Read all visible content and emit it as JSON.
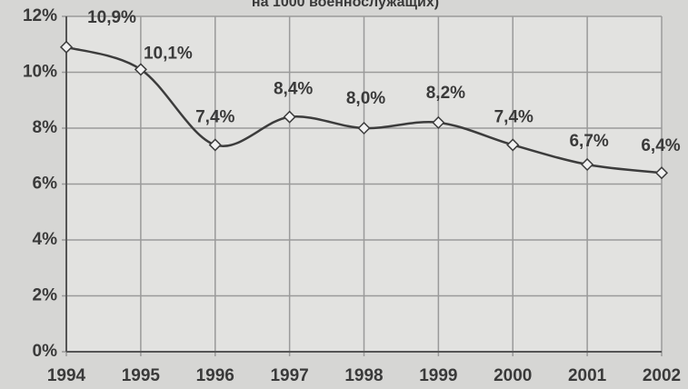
{
  "chart_data": {
    "type": "line",
    "title": "на 1000 военнослужащих)",
    "categories": [
      "1994",
      "1995",
      "1996",
      "1997",
      "1998",
      "1999",
      "2000",
      "2001",
      "2002"
    ],
    "series": [
      {
        "color": "#3c3c3c",
        "values": [
          10.9,
          10.1,
          7.4,
          8.4,
          8.0,
          8.2,
          7.4,
          6.7,
          6.4
        ],
        "value_labels": [
          "10,9%",
          "10,1%",
          "7,4%",
          "8,4%",
          "8,0%",
          "8,2%",
          "7,4%",
          "6,7%",
          "6,4%"
        ]
      }
    ],
    "ylim": [
      0,
      12
    ],
    "yticks": [
      {
        "value": 0,
        "label": "0%"
      },
      {
        "value": 2,
        "label": "2%"
      },
      {
        "value": 4,
        "label": "4%"
      },
      {
        "value": 6,
        "label": "6%"
      },
      {
        "value": 8,
        "label": "8%"
      },
      {
        "value": 10,
        "label": "10%"
      },
      {
        "value": 12,
        "label": "12%"
      }
    ],
    "grid": true
  }
}
